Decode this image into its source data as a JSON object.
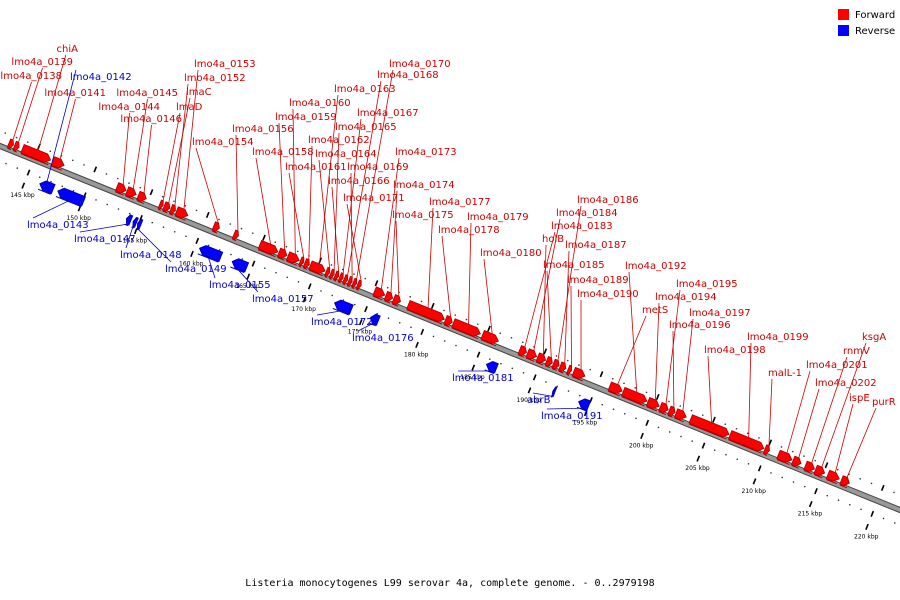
{
  "colors": {
    "forward": "#ff0000",
    "forward_dark": "#a80000",
    "reverse": "#0000ff",
    "reverse_dark": "#0000a0",
    "backbone": "#999999",
    "backbone_dark": "#444444",
    "label_forward": "#cc0000",
    "label_reverse": "#0000cc"
  },
  "legend": [
    {
      "label": "Forward",
      "color": "#ff0000"
    },
    {
      "label": "Reverse",
      "color": "#0000ff"
    }
  ],
  "footer_text": "Listeria monocytogenes L99 serovar 4a, complete genome. - 0..2979198",
  "chart_data": {
    "type": "genome-map",
    "unit": "kbp",
    "range_kbp": [
      142,
      222
    ],
    "ticks": [
      {
        "kbp": 145,
        "label": "145 kbp"
      },
      {
        "kbp": 150,
        "label": "150 kbp"
      },
      {
        "kbp": 155,
        "label": "155 kbp"
      },
      {
        "kbp": 160,
        "label": "160 kbp"
      },
      {
        "kbp": 165,
        "label": "165 kbp"
      },
      {
        "kbp": 170,
        "label": "170 kbp"
      },
      {
        "kbp": 175,
        "label": "175 kbp"
      },
      {
        "kbp": 180,
        "label": "180 kbp"
      },
      {
        "kbp": 185,
        "label": "185 kbp"
      },
      {
        "kbp": 190,
        "label": "190 kbp"
      },
      {
        "kbp": 195,
        "label": "195 kbp"
      },
      {
        "kbp": 200,
        "label": "200 kbp"
      },
      {
        "kbp": 205,
        "label": "205 kbp"
      },
      {
        "kbp": 210,
        "label": "210 kbp"
      },
      {
        "kbp": 215,
        "label": "215 kbp"
      },
      {
        "kbp": 220,
        "label": "220 kbp"
      }
    ],
    "genes": [
      {
        "name": "lmo4a_0138",
        "strand": "+",
        "start": 142.6,
        "end": 143.0
      },
      {
        "name": "lmo4a_0139",
        "strand": "+",
        "start": 143.1,
        "end": 143.5
      },
      {
        "name": "chiA",
        "strand": "+",
        "start": 143.8,
        "end": 146.3
      },
      {
        "name": "lmo4a_0141",
        "strand": "+",
        "start": 146.5,
        "end": 147.5
      },
      {
        "name": "lmo4a_0142",
        "strand": "-",
        "start": 146.2,
        "end": 147.4
      },
      {
        "name": "lmo4a_0143",
        "strand": "-",
        "start": 147.8,
        "end": 150.1
      },
      {
        "name": "lmo4a_0144",
        "strand": "+",
        "start": 152.2,
        "end": 153.0
      },
      {
        "name": "lmo4a_0145",
        "strand": "+",
        "start": 153.1,
        "end": 153.9
      },
      {
        "name": "lmo4a_0146",
        "strand": "+",
        "start": 154.1,
        "end": 154.8
      },
      {
        "name": "lmo4a_0147",
        "strand": "-",
        "start": 153.9,
        "end": 154.3
      },
      {
        "name": "lmo4a_0148",
        "strand": "-",
        "start": 154.5,
        "end": 154.8
      },
      {
        "name": "lmo4a_0149",
        "strand": "-",
        "start": 154.9,
        "end": 155.2
      },
      {
        "name": "lmaD",
        "strand": "+",
        "start": 156.0,
        "end": 156.3
      },
      {
        "name": "lmaC",
        "strand": "+",
        "start": 156.4,
        "end": 156.9
      },
      {
        "name": "lmo4a_0152",
        "strand": "+",
        "start": 157.0,
        "end": 157.4
      },
      {
        "name": "lmo4a_0153",
        "strand": "+",
        "start": 157.5,
        "end": 158.5
      },
      {
        "name": "lmo4a_0154",
        "strand": "+",
        "start": 160.8,
        "end": 161.3
      },
      {
        "name": "lmo4a_0155",
        "strand": "-",
        "start": 160.4,
        "end": 162.3
      },
      {
        "name": "lmo4a_0156",
        "strand": "+",
        "start": 162.6,
        "end": 163.0
      },
      {
        "name": "lmo4a_0157",
        "strand": "-",
        "start": 163.3,
        "end": 164.6
      },
      {
        "name": "lmo4a_0158",
        "strand": "+",
        "start": 164.9,
        "end": 166.5
      },
      {
        "name": "lmo4a_0159",
        "strand": "+",
        "start": 166.6,
        "end": 167.3
      },
      {
        "name": "lmo4a_0160",
        "strand": "+",
        "start": 167.4,
        "end": 168.4
      },
      {
        "name": "lmo4a_0161",
        "strand": "+",
        "start": 168.5,
        "end": 168.8
      },
      {
        "name": "lmo4a_0162",
        "strand": "+",
        "start": 168.9,
        "end": 169.3
      },
      {
        "name": "lmo4a_0163",
        "strand": "+",
        "start": 169.4,
        "end": 170.7
      },
      {
        "name": "lmo4a_0164",
        "strand": "+",
        "start": 170.8,
        "end": 171.1
      },
      {
        "name": "lmo4a_0165",
        "strand": "+",
        "start": 171.2,
        "end": 171.5
      },
      {
        "name": "lmo4a_0166",
        "strand": "+",
        "start": 171.6,
        "end": 171.9
      },
      {
        "name": "lmo4a_0167",
        "strand": "+",
        "start": 172.0,
        "end": 172.3
      },
      {
        "name": "lmo4a_0168",
        "strand": "+",
        "start": 172.4,
        "end": 172.7
      },
      {
        "name": "lmo4a_0169",
        "strand": "+",
        "start": 172.8,
        "end": 173.1
      },
      {
        "name": "lmo4a_0170",
        "strand": "+",
        "start": 173.2,
        "end": 173.5
      },
      {
        "name": "lmo4a_0171",
        "strand": "+",
        "start": 173.6,
        "end": 173.9
      },
      {
        "name": "lmo4a_0172",
        "strand": "-",
        "start": 172.4,
        "end": 173.9
      },
      {
        "name": "lmo4a_0173",
        "strand": "+",
        "start": 175.1,
        "end": 176.0
      },
      {
        "name": "lmo4a_0174",
        "strand": "+",
        "start": 176.1,
        "end": 176.7
      },
      {
        "name": "lmo4a_0175",
        "strand": "+",
        "start": 176.8,
        "end": 177.4
      },
      {
        "name": "lmo4a_0176",
        "strand": "-",
        "start": 175.6,
        "end": 176.3
      },
      {
        "name": "lmo4a_0177",
        "strand": "+",
        "start": 178.1,
        "end": 181.3
      },
      {
        "name": "lmo4a_0178",
        "strand": "+",
        "start": 181.4,
        "end": 182.0
      },
      {
        "name": "lmo4a_0179",
        "strand": "+",
        "start": 182.1,
        "end": 184.5
      },
      {
        "name": "lmo4a_0180",
        "strand": "+",
        "start": 184.7,
        "end": 186.1
      },
      {
        "name": "lmo4a_0181",
        "strand": "-",
        "start": 185.9,
        "end": 186.8
      },
      {
        "name": "lmo4a_0183",
        "strand": "+",
        "start": 188.0,
        "end": 188.6
      },
      {
        "name": "lmo4a_0184",
        "strand": "+",
        "start": 188.7,
        "end": 189.5
      },
      {
        "name": "holB",
        "strand": "+",
        "start": 189.6,
        "end": 190.3
      },
      {
        "name": "lmo4a_0185",
        "strand": "+",
        "start": 190.4,
        "end": 190.9
      },
      {
        "name": "lmo4a_0186",
        "strand": "+",
        "start": 191.0,
        "end": 191.5
      },
      {
        "name": "lmo4a_0187",
        "strand": "+",
        "start": 191.6,
        "end": 192.1
      },
      {
        "name": "lmo4a_0189",
        "strand": "+",
        "start": 192.3,
        "end": 192.6
      },
      {
        "name": "lmo4a_0190",
        "strand": "+",
        "start": 192.8,
        "end": 193.8
      },
      {
        "name": "abrB",
        "strand": "-",
        "start": 191.8,
        "end": 192.0
      },
      {
        "name": "lmo4a_0191",
        "strand": "-",
        "start": 194.1,
        "end": 195.0
      },
      {
        "name": "metS",
        "strand": "+",
        "start": 196.0,
        "end": 197.1
      },
      {
        "name": "lmo4a_0192",
        "strand": "+",
        "start": 197.2,
        "end": 199.3
      },
      {
        "name": "lmo4a_0194",
        "strand": "+",
        "start": 199.4,
        "end": 200.4
      },
      {
        "name": "lmo4a_0195",
        "strand": "+",
        "start": 200.5,
        "end": 201.2
      },
      {
        "name": "lmo4a_0196",
        "strand": "+",
        "start": 201.3,
        "end": 201.8
      },
      {
        "name": "lmo4a_0197",
        "strand": "+",
        "start": 201.9,
        "end": 202.8
      },
      {
        "name": "lmo4a_0198",
        "strand": "+",
        "start": 203.2,
        "end": 206.6
      },
      {
        "name": "lmo4a_0199",
        "strand": "+",
        "start": 206.7,
        "end": 209.7
      },
      {
        "name": "malL-1",
        "strand": "+",
        "start": 209.8,
        "end": 210.2
      },
      {
        "name": "lmo4a_0201",
        "strand": "+",
        "start": 211.0,
        "end": 212.2
      },
      {
        "name": "lmo4a_0202",
        "strand": "+",
        "start": 212.3,
        "end": 213.0
      },
      {
        "name": "rnmV",
        "strand": "+",
        "start": 213.4,
        "end": 214.2
      },
      {
        "name": "ksgA",
        "strand": "+",
        "start": 214.3,
        "end": 215.1
      },
      {
        "name": "ispE",
        "strand": "+",
        "start": 215.4,
        "end": 216.4
      },
      {
        "name": "purR",
        "strand": "+",
        "start": 216.6,
        "end": 217.3
      }
    ]
  },
  "labels": [
    {
      "text": "chiA",
      "strand": "+",
      "kbp": 145.0
    },
    {
      "text": "lmo4a_0139",
      "strand": "+",
      "kbp": 143.3
    },
    {
      "text": "lmo4a_0138",
      "strand": "+",
      "kbp": 142.8
    },
    {
      "text": "lmo4a_0142",
      "strand": "-",
      "kbp": 146.8
    },
    {
      "text": "lmo4a_0141",
      "strand": "+",
      "kbp": 147.0
    },
    {
      "text": "lmo4a_0153",
      "strand": "+",
      "kbp": 158.0
    },
    {
      "text": "lmo4a_0152",
      "strand": "+",
      "kbp": 157.2
    },
    {
      "text": "lmo4a_0145",
      "strand": "+",
      "kbp": 153.5
    },
    {
      "text": "lmaC",
      "strand": "+",
      "kbp": 156.6
    },
    {
      "text": "lmo4a_0144",
      "strand": "+",
      "kbp": 152.6
    },
    {
      "text": "lmaD",
      "strand": "+",
      "kbp": 156.1
    },
    {
      "text": "lmo4a_0146",
      "strand": "+",
      "kbp": 154.4
    },
    {
      "text": "lmo4a_0154",
      "strand": "+",
      "kbp": 161.0
    },
    {
      "text": "lmo4a_0170",
      "strand": "+",
      "kbp": 173.3
    },
    {
      "text": "lmo4a_0168",
      "strand": "+",
      "kbp": 172.5
    },
    {
      "text": "lmo4a_0163",
      "strand": "+",
      "kbp": 170.0
    },
    {
      "text": "lmo4a_0160",
      "strand": "+",
      "kbp": 167.9
    },
    {
      "text": "lmo4a_0167",
      "strand": "+",
      "kbp": 172.1
    },
    {
      "text": "lmo4a_0159",
      "strand": "+",
      "kbp": 166.9
    },
    {
      "text": "lmo4a_0165",
      "strand": "+",
      "kbp": 171.3
    },
    {
      "text": "lmo4a_0156",
      "strand": "+",
      "kbp": 162.8
    },
    {
      "text": "lmo4a_0162",
      "strand": "+",
      "kbp": 169.1
    },
    {
      "text": "lmo4a_0158",
      "strand": "+",
      "kbp": 165.7
    },
    {
      "text": "lmo4a_0164",
      "strand": "+",
      "kbp": 170.9
    },
    {
      "text": "lmo4a_0173",
      "strand": "+",
      "kbp": 175.5
    },
    {
      "text": "lmo4a_0161",
      "strand": "+",
      "kbp": 168.6
    },
    {
      "text": "lmo4a_0169",
      "strand": "+",
      "kbp": 172.9
    },
    {
      "text": "lmo4a_0166",
      "strand": "+",
      "kbp": 171.7
    },
    {
      "text": "lmo4a_0174",
      "strand": "+",
      "kbp": 176.4
    },
    {
      "text": "lmo4a_0171",
      "strand": "+",
      "kbp": 173.7
    },
    {
      "text": "lmo4a_0177",
      "strand": "+",
      "kbp": 179.7
    },
    {
      "text": "lmo4a_0175",
      "strand": "+",
      "kbp": 177.1
    },
    {
      "text": "lmo4a_0179",
      "strand": "+",
      "kbp": 183.3
    },
    {
      "text": "lmo4a_0178",
      "strand": "+",
      "kbp": 181.7
    },
    {
      "text": "lmo4a_0180",
      "strand": "+",
      "kbp": 185.4
    },
    {
      "text": "lmo4a_0186",
      "strand": "+",
      "kbp": 191.2
    },
    {
      "text": "lmo4a_0184",
      "strand": "+",
      "kbp": 189.1
    },
    {
      "text": "lmo4a_0183",
      "strand": "+",
      "kbp": 188.3
    },
    {
      "text": "holB",
      "strand": "+",
      "kbp": 189.9
    },
    {
      "text": "lmo4a_0187",
      "strand": "+",
      "kbp": 191.8
    },
    {
      "text": "lmo4a_0185",
      "strand": "+",
      "kbp": 190.6
    },
    {
      "text": "lmo4a_0189",
      "strand": "+",
      "kbp": 192.4
    },
    {
      "text": "lmo4a_0190",
      "strand": "+",
      "kbp": 193.3
    },
    {
      "text": "lmo4a_0192",
      "strand": "+",
      "kbp": 198.3
    },
    {
      "text": "lmo4a_0195",
      "strand": "+",
      "kbp": 200.8
    },
    {
      "text": "metS",
      "strand": "+",
      "kbp": 196.5
    },
    {
      "text": "lmo4a_0194",
      "strand": "+",
      "kbp": 199.9
    },
    {
      "text": "lmo4a_0197",
      "strand": "+",
      "kbp": 202.3
    },
    {
      "text": "lmo4a_0196",
      "strand": "+",
      "kbp": 201.5
    },
    {
      "text": "lmo4a_0199",
      "strand": "+",
      "kbp": 208.2
    },
    {
      "text": "lmo4a_0198",
      "strand": "+",
      "kbp": 204.9
    },
    {
      "text": "ksgA",
      "strand": "+",
      "kbp": 214.7
    },
    {
      "text": "rnmV",
      "strand": "+",
      "kbp": 213.8
    },
    {
      "text": "malL-1",
      "strand": "+",
      "kbp": 210.0
    },
    {
      "text": "lmo4a_0201",
      "strand": "+",
      "kbp": 211.6
    },
    {
      "text": "lmo4a_0202",
      "strand": "+",
      "kbp": 212.6
    },
    {
      "text": "ispE",
      "strand": "+",
      "kbp": 215.9
    },
    {
      "text": "purR",
      "strand": "+",
      "kbp": 217.0
    },
    {
      "text": "lmo4a_0143",
      "strand": "-",
      "kbp": 149.0
    },
    {
      "text": "lmo4a_0147",
      "strand": "-",
      "kbp": 154.1
    },
    {
      "text": "lmo4a_0148",
      "strand": "-",
      "kbp": 154.6
    },
    {
      "text": "lmo4a_0149",
      "strand": "-",
      "kbp": 155.0
    },
    {
      "text": "lmo4a_0155",
      "strand": "-",
      "kbp": 161.3
    },
    {
      "text": "lmo4a_0157",
      "strand": "-",
      "kbp": 163.9
    },
    {
      "text": "lmo4a_0172",
      "strand": "-",
      "kbp": 173.2
    },
    {
      "text": "lmo4a_0176",
      "strand": "-",
      "kbp": 175.9
    },
    {
      "text": "lmo4a_0181",
      "strand": "-",
      "kbp": 186.3
    },
    {
      "text": "abrB",
      "strand": "-",
      "kbp": 191.9
    },
    {
      "text": "lmo4a_0191",
      "strand": "-",
      "kbp": 194.5
    }
  ]
}
